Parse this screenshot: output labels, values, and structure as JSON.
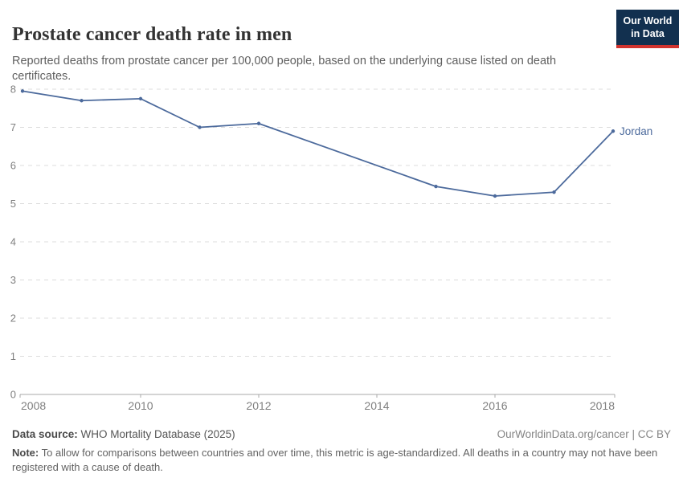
{
  "header": {
    "title": "Prostate cancer death rate in men",
    "subtitle": "Reported deaths from prostate cancer per 100,000 people, based on the underlying cause listed on death certificates.",
    "logo": {
      "line1": "Our World",
      "line2": "in Data"
    }
  },
  "chart_data": {
    "type": "line",
    "title": "Prostate cancer death rate in men",
    "subtitle": "Reported deaths from prostate cancer per 100,000 people, based on the underlying cause listed on death certificates.",
    "xlabel": "",
    "ylabel": "",
    "xlim": [
      2008,
      2018
    ],
    "ylim": [
      0,
      8
    ],
    "xticks": [
      2008,
      2010,
      2012,
      2014,
      2016,
      2018
    ],
    "yticks": [
      0,
      1,
      2,
      3,
      4,
      5,
      6,
      7,
      8
    ],
    "grid": "horizontal-dashed",
    "legend_position": "end-of-line-label",
    "missing_years": [
      2013,
      2014
    ],
    "series": [
      {
        "name": "Jordan",
        "color": "#4c6a9c",
        "points": [
          {
            "x": 2008,
            "y": 7.95
          },
          {
            "x": 2009,
            "y": 7.7
          },
          {
            "x": 2010,
            "y": 7.75
          },
          {
            "x": 2011,
            "y": 7.0
          },
          {
            "x": 2012,
            "y": 7.1
          },
          {
            "x": 2015,
            "y": 5.45
          },
          {
            "x": 2016,
            "y": 5.2
          },
          {
            "x": 2017,
            "y": 5.3
          },
          {
            "x": 2018,
            "y": 6.9
          }
        ]
      }
    ]
  },
  "footer": {
    "source_label": "Data source:",
    "source_value": " WHO Mortality Database (2025)",
    "attribution": "OurWorldinData.org/cancer | CC BY",
    "note_label": "Note:",
    "note_text": " To allow for comparisons between countries and over time, this metric is age-standardized. All deaths in a country may not have been registered with a cause of death."
  },
  "colors": {
    "line": "#4c6a9c",
    "grid": "#dcdcdc",
    "axis": "#a8a8a8",
    "tick_label": "#7f7f7f",
    "logo_bg": "#12304f",
    "logo_accent": "#d1332e"
  }
}
